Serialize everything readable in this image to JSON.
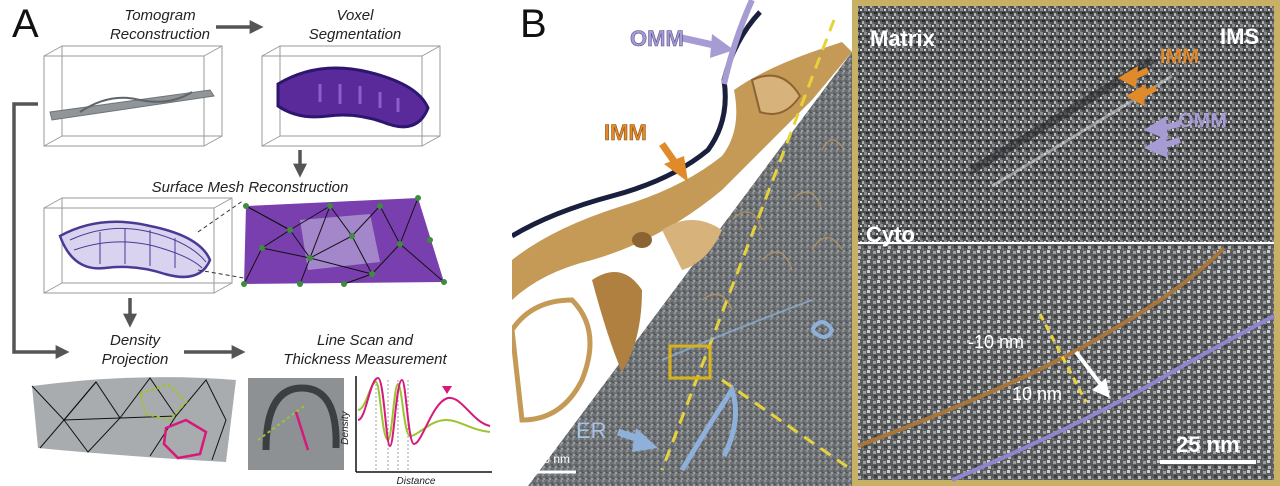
{
  "panel_a": {
    "label": "A",
    "steps": {
      "tomogram": "Tomogram\nReconstruction",
      "voxel": "Voxel\nSegmentation",
      "surface_mesh": "Surface Mesh Reconstruction",
      "density": "Density\nProjection",
      "line_scan": "Line Scan and\nThickness Measurement"
    },
    "plot": {
      "ylabel": "Density",
      "xlabel": "Distance"
    },
    "colors": {
      "magenta": "#d6197a",
      "green": "#9cc431",
      "purple": "#5b2a9a",
      "arrow": "#555555"
    }
  },
  "panel_b": {
    "label": "B",
    "left_labels": {
      "omm": "OMM",
      "imm": "IMM",
      "er": "ER",
      "scale": "100 nm"
    },
    "top_right_labels": {
      "matrix": "Matrix",
      "ims": "IMS",
      "imm": "IMM",
      "omm": "OMM",
      "cyto": "Cyto"
    },
    "bottom_right_labels": {
      "minus": "-10 nm",
      "plus": "10 nm",
      "scale": "25 nm"
    },
    "colors": {
      "omm": "#a79bd3",
      "imm": "#e08a2a",
      "membrane_gold": "#c49a56",
      "er": "#8fb0d8",
      "box": "#d8b21a",
      "dash": "#e6d33c"
    }
  }
}
